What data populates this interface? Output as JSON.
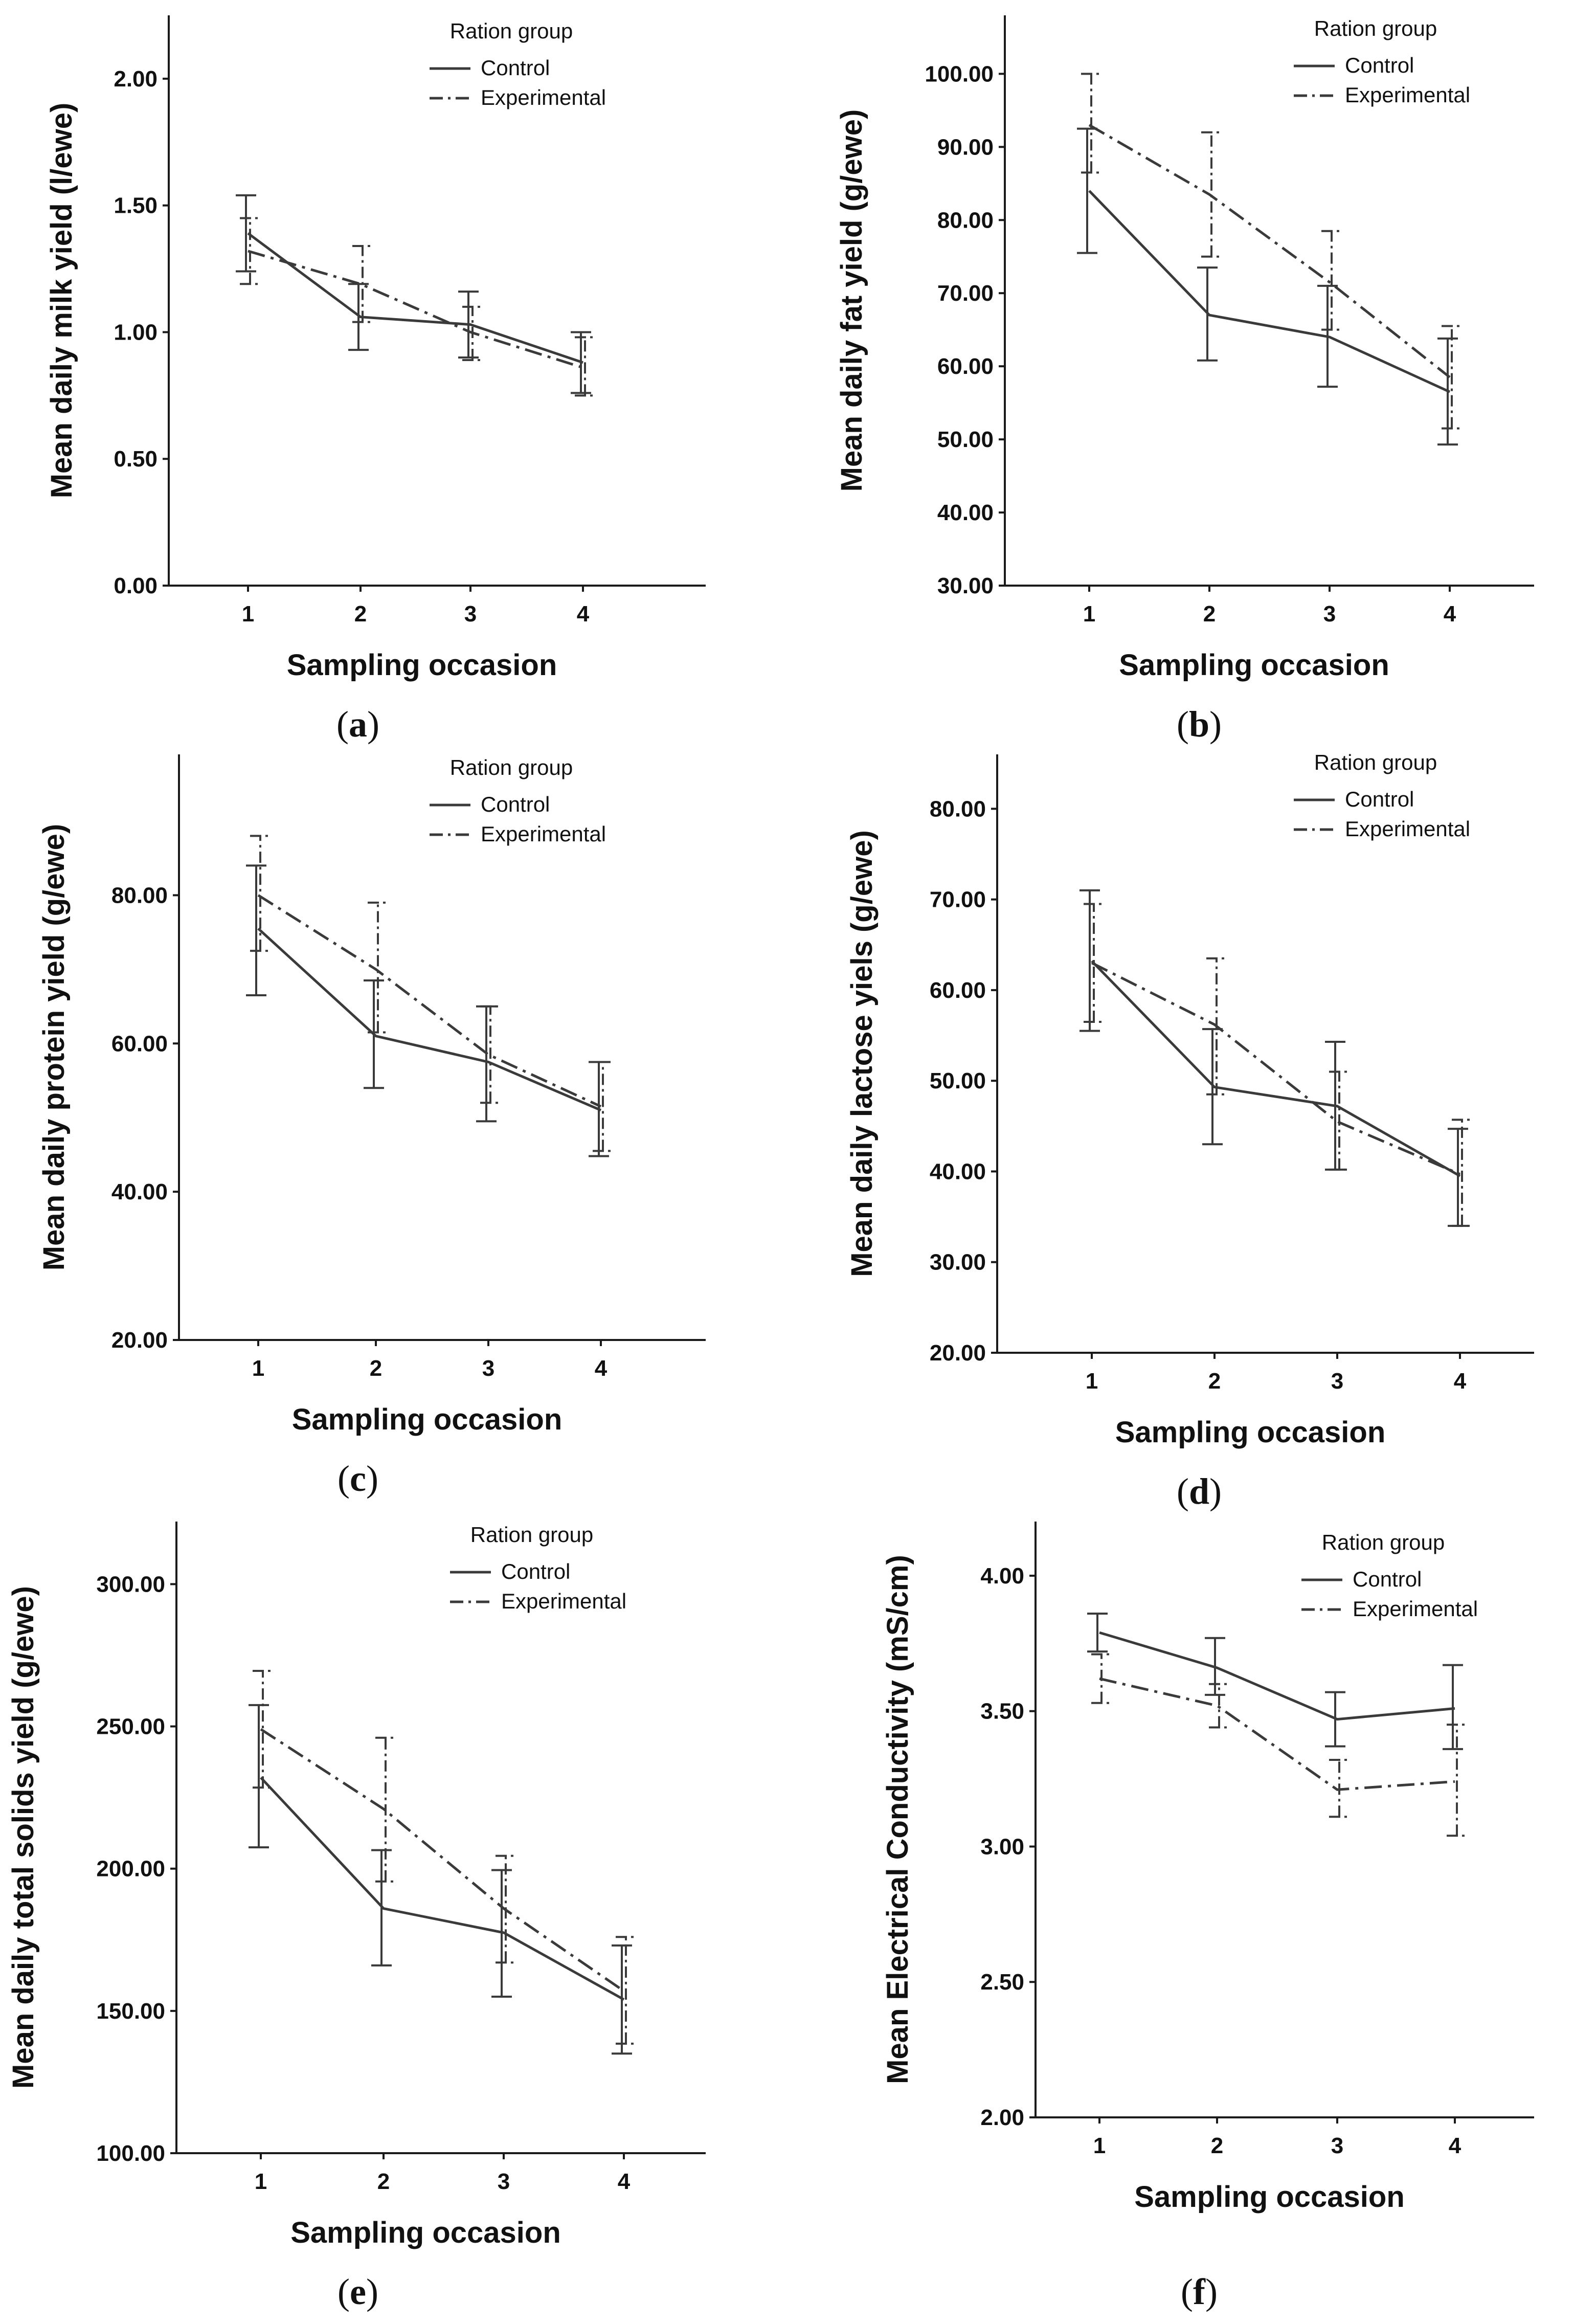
{
  "figure": {
    "xlabel": "Sampling occasion",
    "legend_title": "Ration group",
    "series_names": [
      "Control",
      "Experimental"
    ],
    "colors": {
      "Control": "#3a3a3a",
      "Experimental": "#3a3a3a"
    },
    "line_styles": {
      "Control": "solid",
      "Experimental": "dash-dot"
    }
  },
  "chart_data": [
    {
      "id": "a",
      "caption_letter": "a",
      "type": "line",
      "ylabel": "Mean daily milk yield (l/ewe)",
      "x": [
        1,
        2,
        3,
        4
      ],
      "xticks": [
        "1",
        "2",
        "3",
        "4"
      ],
      "ylim": [
        0,
        2.25
      ],
      "yticks": [
        0,
        0.5,
        1.0,
        1.5,
        2.0
      ],
      "ytick_labels": [
        "0.00",
        "0.50",
        "1.00",
        "1.50",
        "2.00"
      ],
      "series": [
        {
          "name": "Control",
          "values": [
            1.39,
            1.06,
            1.03,
            0.88
          ],
          "lower": [
            1.24,
            0.93,
            0.9,
            0.76
          ],
          "upper": [
            1.54,
            1.19,
            1.16,
            1.0
          ]
        },
        {
          "name": "Experimental",
          "values": [
            1.32,
            1.19,
            1.0,
            0.86
          ],
          "lower": [
            1.19,
            1.04,
            0.89,
            0.75
          ],
          "upper": [
            1.45,
            1.34,
            1.1,
            0.98
          ]
        }
      ]
    },
    {
      "id": "b",
      "caption_letter": "b",
      "type": "line",
      "ylabel": "Mean daily fat yield (g/ewe)",
      "x": [
        1,
        2,
        3,
        4
      ],
      "xticks": [
        "1",
        "2",
        "3",
        "4"
      ],
      "ylim": [
        30,
        108
      ],
      "yticks": [
        30,
        40,
        50,
        60,
        70,
        80,
        90,
        100
      ],
      "ytick_labels": [
        "30.00",
        "40.00",
        "50.00",
        "60.00",
        "70.00",
        "80.00",
        "90.00",
        "100.00"
      ],
      "series": [
        {
          "name": "Control",
          "values": [
            84.0,
            67.0,
            64.0,
            56.5
          ],
          "lower": [
            75.5,
            60.8,
            57.2,
            49.3
          ],
          "upper": [
            92.5,
            73.5,
            71.0,
            63.8
          ]
        },
        {
          "name": "Experimental",
          "values": [
            93.0,
            83.5,
            71.5,
            58.5
          ],
          "lower": [
            86.5,
            75.0,
            65.0,
            51.5
          ],
          "upper": [
            100.0,
            92.0,
            78.5,
            65.5
          ]
        }
      ]
    },
    {
      "id": "c",
      "caption_letter": "c",
      "type": "line",
      "ylabel": "Mean daily protein yield (g/ewe)",
      "x": [
        1,
        2,
        3,
        4
      ],
      "xticks": [
        "1",
        "2",
        "3",
        "4"
      ],
      "ylim": [
        20,
        99
      ],
      "yticks": [
        20,
        40,
        60,
        80
      ],
      "ytick_labels": [
        "20.00",
        "40.00",
        "60.00",
        "80.00"
      ],
      "series": [
        {
          "name": "Control",
          "values": [
            75.5,
            61.0,
            57.5,
            51.0
          ],
          "lower": [
            66.5,
            54.0,
            49.5,
            44.8
          ],
          "upper": [
            84.0,
            68.5,
            65.0,
            57.5
          ]
        },
        {
          "name": "Experimental",
          "values": [
            80.0,
            70.0,
            58.5,
            51.5
          ],
          "lower": [
            72.5,
            61.5,
            52.0,
            45.5
          ],
          "upper": [
            88.0,
            79.0,
            65.0,
            57.5
          ]
        }
      ]
    },
    {
      "id": "d",
      "caption_letter": "d",
      "type": "line",
      "ylabel": "Mean daily lactose yiels (g/ewe)",
      "x": [
        1,
        2,
        3,
        4
      ],
      "xticks": [
        "1",
        "2",
        "3",
        "4"
      ],
      "ylim": [
        20,
        86
      ],
      "yticks": [
        20,
        30,
        40,
        50,
        60,
        70,
        80
      ],
      "ytick_labels": [
        "20.00",
        "30.00",
        "40.00",
        "50.00",
        "60.00",
        "70.00",
        "80.00"
      ],
      "series": [
        {
          "name": "Control",
          "values": [
            63.2,
            49.3,
            47.2,
            39.5
          ],
          "lower": [
            55.5,
            43.0,
            40.2,
            34.0
          ],
          "upper": [
            71.0,
            55.7,
            54.3,
            44.7
          ]
        },
        {
          "name": "Experimental",
          "values": [
            63.0,
            56.2,
            45.5,
            39.7
          ],
          "lower": [
            56.5,
            48.5,
            40.2,
            34.0
          ],
          "upper": [
            69.5,
            63.5,
            51.0,
            45.7
          ]
        }
      ]
    },
    {
      "id": "e",
      "caption_letter": "e",
      "type": "line",
      "ylabel": "Mean daily total solids yield (g/ewe)",
      "x": [
        1,
        2,
        3,
        4
      ],
      "xticks": [
        "1",
        "2",
        "3",
        "4"
      ],
      "ylim": [
        100,
        322
      ],
      "yticks": [
        100,
        150,
        200,
        250,
        300
      ],
      "ytick_labels": [
        "100.00",
        "150.00",
        "200.00",
        "250.00",
        "300.00"
      ],
      "series": [
        {
          "name": "Control",
          "values": [
            232.0,
            186.0,
            177.5,
            154.0
          ],
          "lower": [
            207.5,
            166.0,
            155.0,
            135.0
          ],
          "upper": [
            257.5,
            206.5,
            199.5,
            173.0
          ]
        },
        {
          "name": "Experimental",
          "values": [
            249.0,
            221.0,
            186.0,
            157.0
          ],
          "lower": [
            228.5,
            195.5,
            167.0,
            138.5
          ],
          "upper": [
            269.5,
            246.0,
            204.5,
            176.0
          ]
        }
      ]
    },
    {
      "id": "f",
      "caption_letter": "f",
      "type": "line",
      "ylabel": "Mean Electrical Conductivity (mS/cm)",
      "x": [
        1,
        2,
        3,
        4
      ],
      "xticks": [
        "1",
        "2",
        "3",
        "4"
      ],
      "ylim": [
        2.0,
        4.2
      ],
      "yticks": [
        2.0,
        2.5,
        3.0,
        3.5,
        4.0
      ],
      "ytick_labels": [
        "2.00",
        "2.50",
        "3.00",
        "3.50",
        "4.00"
      ],
      "series": [
        {
          "name": "Control",
          "values": [
            3.79,
            3.66,
            3.47,
            3.51
          ],
          "lower": [
            3.72,
            3.56,
            3.37,
            3.36
          ],
          "upper": [
            3.86,
            3.77,
            3.57,
            3.67
          ]
        },
        {
          "name": "Experimental",
          "values": [
            3.62,
            3.52,
            3.21,
            3.24
          ],
          "lower": [
            3.53,
            3.44,
            3.11,
            3.04
          ],
          "upper": [
            3.71,
            3.6,
            3.32,
            3.45
          ]
        }
      ]
    }
  ]
}
